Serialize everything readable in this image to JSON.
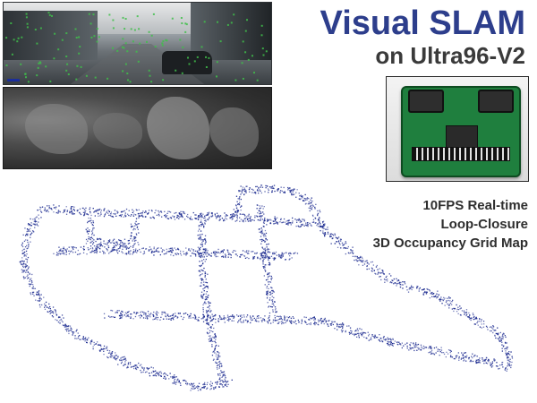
{
  "title": {
    "main": "Visual SLAM",
    "subtitle": "on Ultra96-V2"
  },
  "features": [
    "10FPS Real-time",
    "Loop-Closure",
    "3D Occupancy Grid Map"
  ],
  "colors": {
    "title_blue": "#2d3e8c",
    "subtitle_gray": "#3a3a3a",
    "map_points": "#1b2a8f",
    "feature_text": "#2e2e2e"
  },
  "icons": {
    "camera_image": "stereo-camera-frame",
    "depth_image": "depth-map-frame",
    "board_image": "ultra96-v2-board-photo",
    "map_image": "slam-trajectory-point-cloud"
  }
}
